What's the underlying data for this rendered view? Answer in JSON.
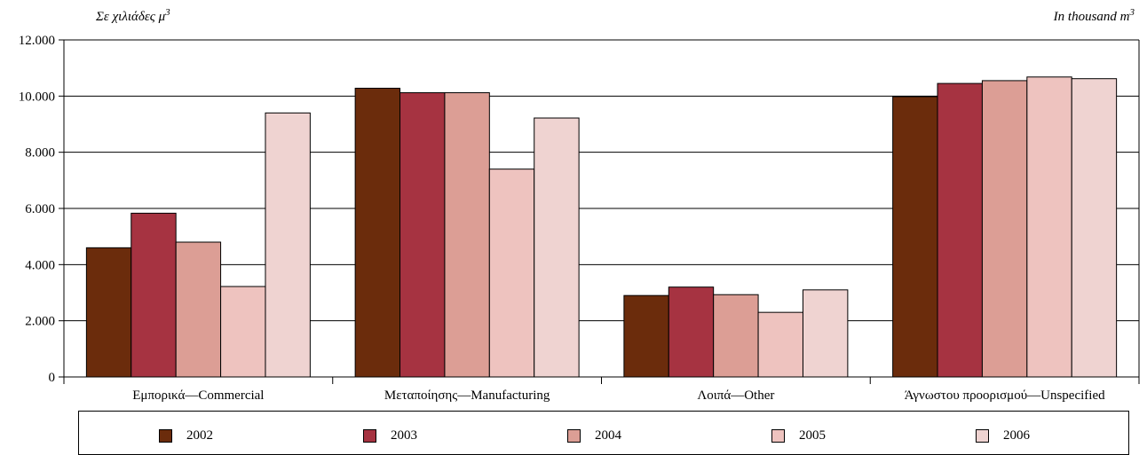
{
  "unit_left": {
    "text": "Σε χιλιάδες μ",
    "sup": "3"
  },
  "unit_right": {
    "text": "In thousand m",
    "sup": "3"
  },
  "chart_data": {
    "type": "bar",
    "categories": [
      "Εμπορικά—Commercial",
      "Μεταποίησης—Manufacturing",
      "Λοιπά—Other",
      "Άγνωστου προορισμού—Unspecified"
    ],
    "series": [
      {
        "name": "2002",
        "color": "#6b2c0c",
        "values": [
          4600,
          10280,
          2900,
          9980
        ]
      },
      {
        "name": "2003",
        "color": "#a63341",
        "values": [
          5830,
          10120,
          3200,
          10450
        ]
      },
      {
        "name": "2004",
        "color": "#dc9e95",
        "values": [
          4800,
          10120,
          2930,
          10550
        ]
      },
      {
        "name": "2005",
        "color": "#eec3bf",
        "values": [
          3220,
          7400,
          2300,
          10680
        ]
      },
      {
        "name": "2006",
        "color": "#efd3d1",
        "values": [
          9400,
          9220,
          3100,
          10620
        ]
      }
    ],
    "y_ticks": [
      "0",
      "2.000",
      "4.000",
      "6.000",
      "8.000",
      "10.000",
      "12.000"
    ],
    "ylim": [
      0,
      12000
    ],
    "grid": true,
    "legend_position": "bottom"
  }
}
